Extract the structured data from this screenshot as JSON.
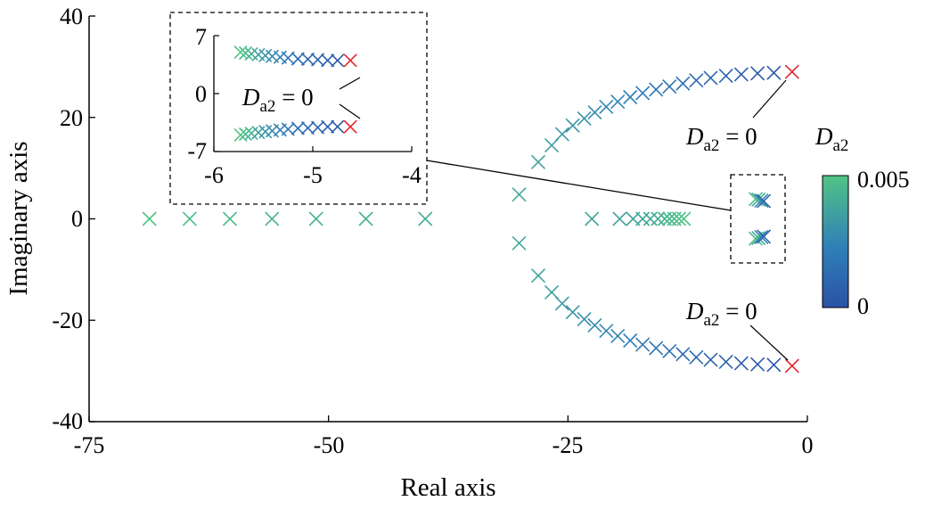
{
  "colors": {
    "low": "#2a52a6",
    "mid": "#2f7fb8",
    "high": "#52c385",
    "baseline": "#e3242b",
    "axis": "#000000"
  },
  "chart_data": {
    "type": "scatter",
    "xlabel": "Real axis",
    "ylabel": "Imaginary axis",
    "xlim": [
      -75,
      0
    ],
    "ylim": [
      -40,
      40
    ],
    "xticks": [
      "-75",
      "-50",
      "-25",
      "0"
    ],
    "yticks": [
      "40",
      "20",
      "0",
      "-20",
      "-40"
    ],
    "marker": "x",
    "colorbar": {
      "label_main": "D",
      "label_sub": "a2",
      "max_label": "0.005",
      "min_label": "0",
      "range": [
        0,
        0.005
      ]
    },
    "series": [
      {
        "branch": "upper",
        "points": [
          {
            "x": -1.6,
            "y": 29.0,
            "d": 0
          },
          {
            "x": -3.5,
            "y": 28.8,
            "d": 0.0002
          },
          {
            "x": -5.2,
            "y": 28.7,
            "d": 0.0004
          },
          {
            "x": -6.9,
            "y": 28.5,
            "d": 0.0006
          },
          {
            "x": -8.5,
            "y": 28.2,
            "d": 0.0008
          },
          {
            "x": -10.1,
            "y": 27.8,
            "d": 0.001
          },
          {
            "x": -11.6,
            "y": 27.3,
            "d": 0.0012
          },
          {
            "x": -13.0,
            "y": 26.7,
            "d": 0.0014
          },
          {
            "x": -14.4,
            "y": 26.1,
            "d": 0.0016
          },
          {
            "x": -15.8,
            "y": 25.5,
            "d": 0.0018
          },
          {
            "x": -17.2,
            "y": 24.8,
            "d": 0.002
          },
          {
            "x": -18.5,
            "y": 24.0,
            "d": 0.0022
          },
          {
            "x": -19.8,
            "y": 23.1,
            "d": 0.0024
          },
          {
            "x": -21.0,
            "y": 22.1,
            "d": 0.0026
          },
          {
            "x": -22.2,
            "y": 21.0,
            "d": 0.0028
          },
          {
            "x": -23.3,
            "y": 19.8,
            "d": 0.003
          },
          {
            "x": -24.5,
            "y": 18.4,
            "d": 0.0032
          },
          {
            "x": -25.6,
            "y": 16.7,
            "d": 0.0034
          },
          {
            "x": -26.7,
            "y": 14.5,
            "d": 0.0036
          },
          {
            "x": -28.1,
            "y": 11.2,
            "d": 0.0038
          },
          {
            "x": -30.1,
            "y": 4.8,
            "d": 0.004
          }
        ]
      },
      {
        "branch": "lower",
        "points": [
          {
            "x": -1.6,
            "y": -29.0,
            "d": 0
          },
          {
            "x": -3.5,
            "y": -28.8,
            "d": 0.0002
          },
          {
            "x": -5.2,
            "y": -28.7,
            "d": 0.0004
          },
          {
            "x": -6.9,
            "y": -28.5,
            "d": 0.0006
          },
          {
            "x": -8.5,
            "y": -28.2,
            "d": 0.0008
          },
          {
            "x": -10.1,
            "y": -27.8,
            "d": 0.001
          },
          {
            "x": -11.6,
            "y": -27.3,
            "d": 0.0012
          },
          {
            "x": -13.0,
            "y": -26.7,
            "d": 0.0014
          },
          {
            "x": -14.4,
            "y": -26.1,
            "d": 0.0016
          },
          {
            "x": -15.8,
            "y": -25.5,
            "d": 0.0018
          },
          {
            "x": -17.2,
            "y": -24.8,
            "d": 0.002
          },
          {
            "x": -18.5,
            "y": -24.0,
            "d": 0.0022
          },
          {
            "x": -19.8,
            "y": -23.1,
            "d": 0.0024
          },
          {
            "x": -21.0,
            "y": -22.1,
            "d": 0.0026
          },
          {
            "x": -22.2,
            "y": -21.0,
            "d": 0.0028
          },
          {
            "x": -23.3,
            "y": -19.8,
            "d": 0.003
          },
          {
            "x": -24.5,
            "y": -18.4,
            "d": 0.0032
          },
          {
            "x": -25.6,
            "y": -16.7,
            "d": 0.0034
          },
          {
            "x": -26.7,
            "y": -14.5,
            "d": 0.0036
          },
          {
            "x": -28.1,
            "y": -11.2,
            "d": 0.0038
          },
          {
            "x": -30.1,
            "y": -4.8,
            "d": 0.004
          }
        ]
      },
      {
        "branch": "real-axis-far",
        "points": [
          {
            "x": -68.7,
            "y": 0,
            "d": 0.005
          },
          {
            "x": -64.5,
            "y": 0,
            "d": 0.0048
          },
          {
            "x": -60.3,
            "y": 0,
            "d": 0.0046
          },
          {
            "x": -55.9,
            "y": 0,
            "d": 0.0045
          },
          {
            "x": -51.3,
            "y": 0,
            "d": 0.0044
          },
          {
            "x": -46.1,
            "y": 0,
            "d": 0.0043
          },
          {
            "x": -39.9,
            "y": 0,
            "d": 0.0042
          }
        ]
      },
      {
        "branch": "real-axis-near",
        "points": [
          {
            "x": -22.5,
            "y": 0,
            "d": 0.004
          },
          {
            "x": -19.6,
            "y": 0,
            "d": 0.0038
          },
          {
            "x": -18.2,
            "y": 0,
            "d": 0.0038
          },
          {
            "x": -17.2,
            "y": 0,
            "d": 0.0039
          },
          {
            "x": -16.4,
            "y": 0,
            "d": 0.004
          },
          {
            "x": -15.6,
            "y": 0,
            "d": 0.0041
          },
          {
            "x": -14.9,
            "y": 0,
            "d": 0.0043
          },
          {
            "x": -14.4,
            "y": 0,
            "d": 0.0045
          },
          {
            "x": -13.9,
            "y": 0,
            "d": 0.0046
          },
          {
            "x": -13.4,
            "y": 0,
            "d": 0.0048
          },
          {
            "x": -12.9,
            "y": 0,
            "d": 0.005
          }
        ]
      },
      {
        "branch": "near-origin-upper",
        "points": [
          {
            "x": -5.4,
            "y": 3.9,
            "d": 0.0048
          },
          {
            "x": -5.1,
            "y": 3.8,
            "d": 0.004
          },
          {
            "x": -4.8,
            "y": 3.6,
            "d": 0.0025
          },
          {
            "x": -4.55,
            "y": 3.5,
            "d": 0.001
          }
        ]
      },
      {
        "branch": "near-origin-lower",
        "points": [
          {
            "x": -5.4,
            "y": -3.9,
            "d": 0.0048
          },
          {
            "x": -5.1,
            "y": -3.8,
            "d": 0.004
          },
          {
            "x": -4.8,
            "y": -3.6,
            "d": 0.0025
          },
          {
            "x": -4.55,
            "y": -3.5,
            "d": 0.001
          }
        ]
      }
    ],
    "inset": {
      "xlim": [
        -6,
        -4
      ],
      "ylim": [
        -7,
        7
      ],
      "xticks": [
        "-6",
        "-5",
        "-4"
      ],
      "yticks": [
        "7",
        "0",
        "-7"
      ],
      "series": [
        {
          "branch": "upper",
          "points": [
            {
              "x": -4.62,
              "y": 4.0,
              "d": 0
            },
            {
              "x": -4.75,
              "y": 4.0,
              "d": 0.0003
            },
            {
              "x": -4.85,
              "y": 4.0,
              "d": 0.0006
            },
            {
              "x": -4.95,
              "y": 4.1,
              "d": 0.0009
            },
            {
              "x": -5.05,
              "y": 4.15,
              "d": 0.0012
            },
            {
              "x": -5.15,
              "y": 4.2,
              "d": 0.0015
            },
            {
              "x": -5.25,
              "y": 4.3,
              "d": 0.0019
            },
            {
              "x": -5.33,
              "y": 4.4,
              "d": 0.0023
            },
            {
              "x": -5.41,
              "y": 4.5,
              "d": 0.0027
            },
            {
              "x": -5.48,
              "y": 4.6,
              "d": 0.0031
            },
            {
              "x": -5.55,
              "y": 4.7,
              "d": 0.0036
            },
            {
              "x": -5.62,
              "y": 4.8,
              "d": 0.0041
            },
            {
              "x": -5.68,
              "y": 4.9,
              "d": 0.0046
            },
            {
              "x": -5.73,
              "y": 5.0,
              "d": 0.005
            }
          ]
        },
        {
          "branch": "lower",
          "points": [
            {
              "x": -4.62,
              "y": -4.0,
              "d": 0
            },
            {
              "x": -4.75,
              "y": -4.0,
              "d": 0.0003
            },
            {
              "x": -4.85,
              "y": -4.0,
              "d": 0.0006
            },
            {
              "x": -4.95,
              "y": -4.1,
              "d": 0.0009
            },
            {
              "x": -5.05,
              "y": -4.15,
              "d": 0.0012
            },
            {
              "x": -5.15,
              "y": -4.2,
              "d": 0.0015
            },
            {
              "x": -5.25,
              "y": -4.3,
              "d": 0.0019
            },
            {
              "x": -5.33,
              "y": -4.4,
              "d": 0.0023
            },
            {
              "x": -5.41,
              "y": -4.5,
              "d": 0.0027
            },
            {
              "x": -5.48,
              "y": -4.6,
              "d": 0.0031
            },
            {
              "x": -5.55,
              "y": -4.7,
              "d": 0.0036
            },
            {
              "x": -5.62,
              "y": -4.8,
              "d": 0.0041
            },
            {
              "x": -5.68,
              "y": -4.9,
              "d": 0.0046
            },
            {
              "x": -5.73,
              "y": -5.0,
              "d": 0.005
            }
          ]
        }
      ]
    },
    "annotations": [
      {
        "text_main": "D",
        "text_sub": "a2",
        "text_rest": " = 0",
        "target": "upper-branch-start"
      },
      {
        "text_main": "D",
        "text_sub": "a2",
        "text_rest": " = 0",
        "target": "lower-branch-start"
      },
      {
        "text_main": "D",
        "text_sub": "a2",
        "text_rest": " = 0",
        "target": "inset-branch-start"
      }
    ]
  }
}
